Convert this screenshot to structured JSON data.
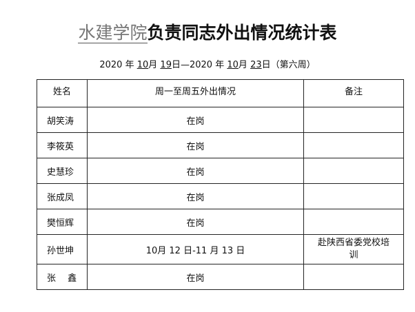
{
  "title": {
    "org": "水建学院",
    "rest": "负责同志外出情况统计表"
  },
  "date": {
    "y1": "2020",
    "m1": "10",
    "d1": "19",
    "y2": "2020",
    "m2": "10",
    "d2": "23",
    "week": "（第六周）",
    "nian": "年",
    "yue": "月",
    "ri": "日",
    "dash": "—"
  },
  "table": {
    "headers": [
      "姓名",
      "周一至周五外出情况",
      "备注"
    ],
    "rows": [
      {
        "name": "胡笑涛",
        "status": "在岗",
        "note": ""
      },
      {
        "name": "李筱英",
        "status": "在岗",
        "note": ""
      },
      {
        "name": "史慧珍",
        "status": "在岗",
        "note": ""
      },
      {
        "name": "张成凤",
        "status": "在岗",
        "note": ""
      },
      {
        "name": "樊恒辉",
        "status": "在岗",
        "note": ""
      },
      {
        "name": "孙世坤",
        "status": "10月 12 日-11 月 13 日",
        "note": "赴陕西省委党校培训"
      },
      {
        "name": "张　 鑫",
        "status": "在岗",
        "note": ""
      }
    ]
  }
}
